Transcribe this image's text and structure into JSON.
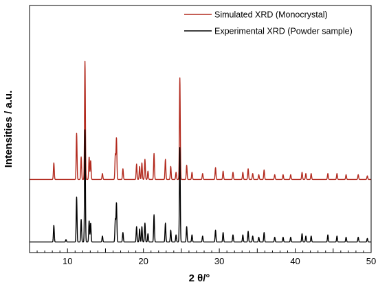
{
  "chart_data": {
    "type": "line",
    "xlabel": "2 θ/°",
    "ylabel": "Intensities / a.u.",
    "xlim": [
      5,
      50
    ],
    "x_ticks": [
      10,
      20,
      30,
      40,
      50
    ],
    "x_tick_labels": [
      "10",
      "20",
      "30",
      "40",
      "50"
    ],
    "y_ticks_shown": false,
    "grid": false,
    "legend_position": "top-right",
    "series": [
      {
        "name": "Simulated XRD (Monocrystal)",
        "color": "#b22a1e",
        "baseline": 0.55,
        "peaks": [
          [
            8.2,
            0.14
          ],
          [
            11.2,
            0.39
          ],
          [
            11.8,
            0.19
          ],
          [
            12.3,
            1.0
          ],
          [
            12.85,
            0.19
          ],
          [
            13.05,
            0.16
          ],
          [
            14.6,
            0.05
          ],
          [
            16.3,
            0.21
          ],
          [
            16.45,
            0.35
          ],
          [
            17.3,
            0.09
          ],
          [
            19.1,
            0.13
          ],
          [
            19.5,
            0.11
          ],
          [
            19.8,
            0.14
          ],
          [
            20.2,
            0.17
          ],
          [
            20.6,
            0.07
          ],
          [
            21.4,
            0.22
          ],
          [
            22.9,
            0.17
          ],
          [
            23.6,
            0.11
          ],
          [
            24.3,
            0.06
          ],
          [
            24.8,
            0.86
          ],
          [
            25.7,
            0.12
          ],
          [
            26.4,
            0.06
          ],
          [
            27.8,
            0.05
          ],
          [
            29.5,
            0.1
          ],
          [
            30.5,
            0.07
          ],
          [
            31.8,
            0.06
          ],
          [
            33.1,
            0.06
          ],
          [
            33.8,
            0.09
          ],
          [
            34.4,
            0.05
          ],
          [
            35.2,
            0.04
          ],
          [
            35.9,
            0.08
          ],
          [
            37.3,
            0.04
          ],
          [
            38.4,
            0.04
          ],
          [
            39.4,
            0.04
          ],
          [
            40.9,
            0.06
          ],
          [
            41.4,
            0.05
          ],
          [
            42.1,
            0.05
          ],
          [
            44.3,
            0.05
          ],
          [
            45.5,
            0.05
          ],
          [
            46.7,
            0.04
          ],
          [
            48.3,
            0.04
          ],
          [
            49.5,
            0.03
          ]
        ]
      },
      {
        "name": "Experimental XRD (Powder sample)",
        "color": "#000000",
        "baseline": 0.02,
        "peaks": [
          [
            8.2,
            0.14
          ],
          [
            9.8,
            0.02
          ],
          [
            11.2,
            0.38
          ],
          [
            11.8,
            0.19
          ],
          [
            12.3,
            0.95
          ],
          [
            12.85,
            0.18
          ],
          [
            13.05,
            0.16
          ],
          [
            14.6,
            0.05
          ],
          [
            16.3,
            0.19
          ],
          [
            16.45,
            0.33
          ],
          [
            17.3,
            0.08
          ],
          [
            19.1,
            0.13
          ],
          [
            19.5,
            0.11
          ],
          [
            19.8,
            0.13
          ],
          [
            20.2,
            0.16
          ],
          [
            20.6,
            0.07
          ],
          [
            21.4,
            0.23
          ],
          [
            22.9,
            0.16
          ],
          [
            23.6,
            0.1
          ],
          [
            24.3,
            0.06
          ],
          [
            24.8,
            0.8
          ],
          [
            25.7,
            0.13
          ],
          [
            26.4,
            0.06
          ],
          [
            27.8,
            0.05
          ],
          [
            29.5,
            0.1
          ],
          [
            30.5,
            0.08
          ],
          [
            31.8,
            0.06
          ],
          [
            33.1,
            0.06
          ],
          [
            33.8,
            0.09
          ],
          [
            34.4,
            0.05
          ],
          [
            35.2,
            0.04
          ],
          [
            35.9,
            0.08
          ],
          [
            37.3,
            0.04
          ],
          [
            38.4,
            0.04
          ],
          [
            39.4,
            0.04
          ],
          [
            40.9,
            0.07
          ],
          [
            41.4,
            0.05
          ],
          [
            42.1,
            0.05
          ],
          [
            44.3,
            0.06
          ],
          [
            45.5,
            0.05
          ],
          [
            46.7,
            0.04
          ],
          [
            48.3,
            0.04
          ],
          [
            49.5,
            0.03
          ]
        ]
      }
    ]
  }
}
